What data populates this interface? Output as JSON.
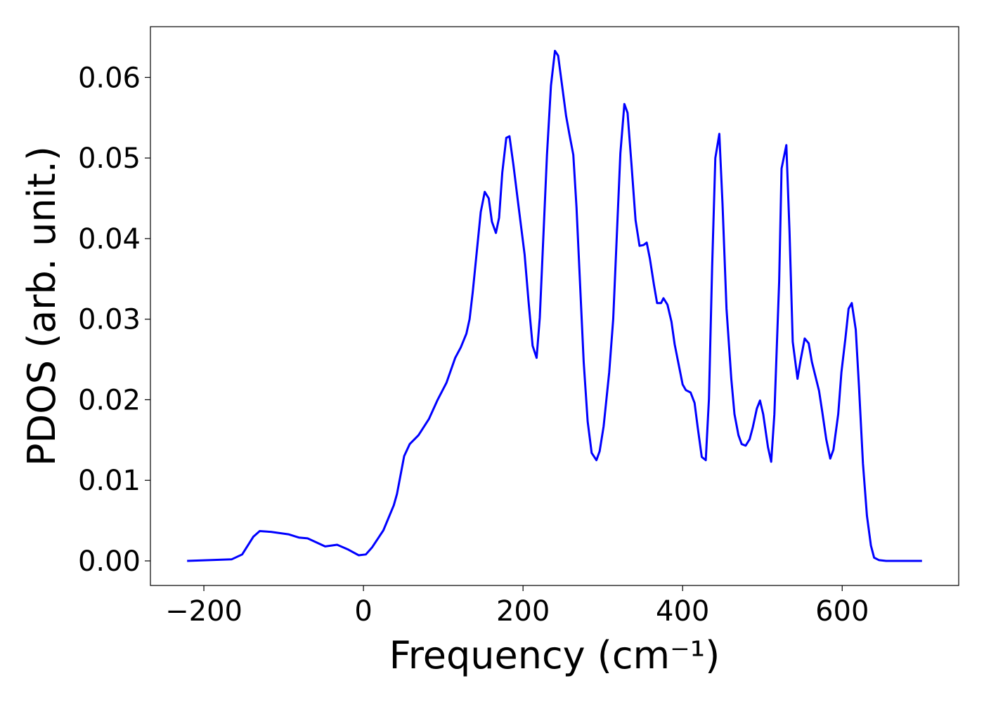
{
  "chart_data": {
    "type": "line",
    "xlabel": "Frequency (cm⁻¹)",
    "ylabel": "PDOS (arb. unit.)",
    "color": "#0000ff",
    "xlim": [
      -267,
      746
    ],
    "ylim": [
      -0.00305,
      0.0663
    ],
    "xticks": [
      {
        "value": -200,
        "label": "−200"
      },
      0,
      200,
      400,
      600
    ],
    "yticks": [
      {
        "value": 0,
        "label": "0.00"
      },
      0.01,
      0.02,
      0.03,
      0.04,
      0.05,
      0.06
    ],
    "x": [
      -221,
      -165,
      -152,
      -138,
      -130,
      -116,
      -94,
      -81,
      -70,
      -48,
      -33,
      -19,
      -6,
      3,
      11,
      25,
      38,
      42,
      51,
      58,
      69,
      82,
      93,
      104,
      115,
      122,
      129,
      133,
      137,
      147,
      152,
      157,
      161,
      166,
      170,
      174,
      179,
      183,
      188,
      194,
      202,
      207,
      212,
      217,
      221,
      230,
      235,
      240,
      244,
      254,
      258,
      263,
      267,
      276,
      281,
      286,
      292,
      296,
      301,
      308,
      313,
      322,
      327,
      331,
      336,
      341,
      346,
      351,
      355,
      359,
      364,
      368,
      373,
      376,
      381,
      386,
      390,
      396,
      400,
      404,
      410,
      415,
      419,
      424,
      429,
      433,
      437,
      441,
      446,
      450,
      455,
      461,
      465,
      470,
      474,
      479,
      484,
      488,
      493,
      497,
      501,
      507,
      511,
      515,
      521,
      524,
      530,
      534,
      538,
      544,
      548,
      553,
      558,
      562,
      567,
      571,
      575,
      580,
      585,
      589,
      595,
      599,
      604,
      608,
      612,
      617,
      621,
      626,
      631,
      636,
      640,
      646,
      655,
      700
    ],
    "values": [
      0,
      0.0002,
      0.0008,
      0.003,
      0.0037,
      0.0036,
      0.0033,
      0.0029,
      0.0028,
      0.0018,
      0.002,
      0.0014,
      0.0007,
      0.0008,
      0.0017,
      0.0038,
      0.0069,
      0.0083,
      0.013,
      0.0145,
      0.0156,
      0.0176,
      0.02,
      0.0221,
      0.0252,
      0.0265,
      0.0282,
      0.03,
      0.0334,
      0.0433,
      0.0458,
      0.045,
      0.0421,
      0.0407,
      0.0426,
      0.0482,
      0.0525,
      0.0527,
      0.0491,
      0.0443,
      0.038,
      0.0321,
      0.0267,
      0.0252,
      0.0302,
      0.0504,
      0.059,
      0.0633,
      0.0627,
      0.0552,
      0.053,
      0.0504,
      0.0439,
      0.0247,
      0.0173,
      0.0134,
      0.0125,
      0.0136,
      0.0167,
      0.0234,
      0.03,
      0.0506,
      0.0567,
      0.0556,
      0.0491,
      0.0423,
      0.0391,
      0.0392,
      0.0395,
      0.0375,
      0.0343,
      0.032,
      0.032,
      0.0326,
      0.0318,
      0.0297,
      0.0269,
      0.0239,
      0.0219,
      0.0212,
      0.0209,
      0.0196,
      0.0165,
      0.0129,
      0.0125,
      0.0201,
      0.0365,
      0.05,
      0.053,
      0.0443,
      0.0313,
      0.0226,
      0.0182,
      0.0156,
      0.0145,
      0.0143,
      0.0151,
      0.0166,
      0.0189,
      0.0199,
      0.0182,
      0.0141,
      0.0123,
      0.0182,
      0.0347,
      0.0487,
      0.0516,
      0.0408,
      0.0272,
      0.0226,
      0.025,
      0.0276,
      0.027,
      0.0247,
      0.0227,
      0.0211,
      0.0185,
      0.0151,
      0.0127,
      0.0138,
      0.0182,
      0.0234,
      0.0276,
      0.0313,
      0.032,
      0.0287,
      0.0217,
      0.0121,
      0.0056,
      0.0019,
      0.0004,
      0.0001,
      0,
      0
    ]
  }
}
